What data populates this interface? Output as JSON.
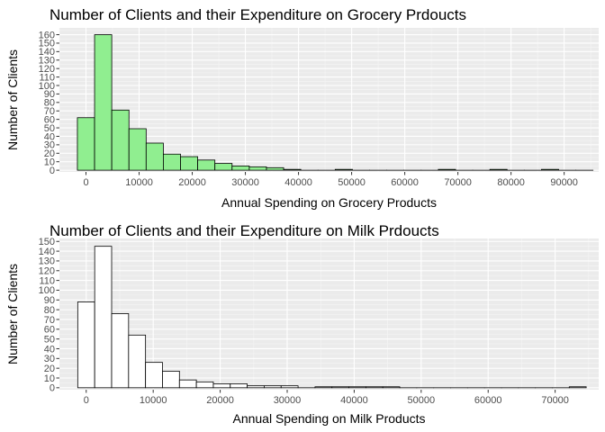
{
  "colors": {
    "panel_bg": "#ebebeb",
    "grid_major": "#ffffff",
    "grid_minor": "#f5f5f5",
    "bar_outline": "#000000",
    "tick": "#333333"
  },
  "chart_data": [
    {
      "type": "bar",
      "title": "Number of Clients and their Expenditure on Grocery Prdoucts",
      "xlabel": "Annual Spending on Grocery Products",
      "ylabel": "Number of Clients",
      "fill": "#90ee90",
      "grid": true,
      "legend": "none",
      "xlim": [
        -5000,
        96500
      ],
      "ylim": [
        -2,
        168
      ],
      "xticks": [
        0,
        10000,
        20000,
        30000,
        40000,
        50000,
        60000,
        70000,
        80000,
        90000
      ],
      "yticks": [
        0,
        10,
        20,
        30,
        40,
        50,
        60,
        70,
        80,
        90,
        100,
        110,
        120,
        130,
        140,
        150,
        160
      ],
      "bin_width": 3235,
      "bin_start": -1618,
      "counts": [
        62,
        160,
        71,
        49,
        32,
        19,
        16,
        12,
        8,
        5,
        4,
        3,
        1,
        0,
        0,
        1,
        0,
        0,
        0,
        0,
        0,
        1,
        0,
        0,
        1,
        0,
        0,
        1,
        0,
        0
      ]
    },
    {
      "type": "bar",
      "title": "Number of Clients and their Expenditure on Milk Prdoucts",
      "xlabel": "Annual Spending on Milk Products",
      "ylabel": "Number of Clients",
      "fill": "#ffffff",
      "grid": true,
      "legend": "none",
      "xlim": [
        -4000,
        76500
      ],
      "ylim": [
        -2,
        153
      ],
      "xticks": [
        0,
        10000,
        20000,
        30000,
        40000,
        50000,
        60000,
        70000
      ],
      "yticks": [
        0,
        10,
        20,
        30,
        40,
        50,
        60,
        70,
        80,
        90,
        100,
        110,
        120,
        130,
        140,
        150
      ],
      "bin_width": 2530,
      "bin_start": -1265,
      "counts": [
        88,
        145,
        76,
        54,
        26,
        17,
        8,
        6,
        4,
        4,
        2,
        2,
        2,
        0,
        1,
        1,
        1,
        1,
        1,
        0,
        0,
        0,
        0,
        0,
        0,
        0,
        0,
        0,
        0,
        1
      ]
    }
  ]
}
